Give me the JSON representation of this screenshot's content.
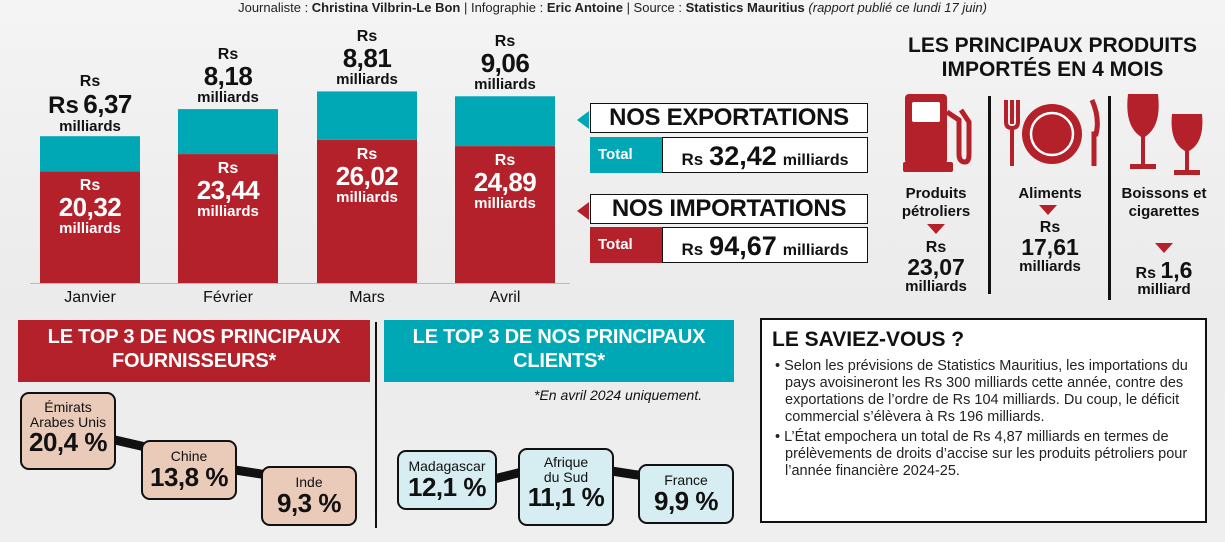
{
  "credits": {
    "journalist_label": "Journaliste : ",
    "journalist": "Christina Vilbrin-Le Bon",
    "infographic_label": " | Infographie : ",
    "infographer": "Eric Antoine",
    "source_label": " | Source : ",
    "source": "Statistics Mauritius",
    "note": " (rapport publié ce lundi 17 juin)"
  },
  "colors": {
    "export": "#00a7b5",
    "import": "#b5212a",
    "supplier_box": "#eacbb9",
    "client_box": "#d6edf1"
  },
  "chart_data": {
    "type": "bar",
    "stacked": true,
    "categories": [
      "Janvier",
      "Février",
      "Mars",
      "Avril"
    ],
    "series": [
      {
        "name": "Importations",
        "values": [
          20.32,
          23.44,
          26.02,
          24.89
        ],
        "labels": [
          "20,32",
          "23,44",
          "26,02",
          "24,89"
        ]
      },
      {
        "name": "Exportations",
        "values": [
          6.37,
          8.18,
          8.81,
          9.06
        ],
        "labels": [
          "6,37",
          "8,18",
          "8,81",
          "9,06"
        ]
      }
    ],
    "currency": "Rs",
    "unit": "milliards",
    "title": "",
    "xlabel": "",
    "ylabel": "",
    "ylim": [
      0,
      36
    ]
  },
  "totals": {
    "exports": {
      "title": "NOS EXPORTATIONS",
      "label": "Total",
      "currency": "Rs",
      "value": "32,42",
      "unit": "milliards"
    },
    "imports": {
      "title": "NOS IMPORTATIONS",
      "label": "Total",
      "currency": "Rs",
      "value": "94,67",
      "unit": "milliards"
    }
  },
  "products": {
    "title": "LES PRINCIPAUX PRODUITS IMPORTÉS EN 4 MOIS",
    "items": [
      {
        "name": "Produits pétroliers",
        "icon": "fuel-pump-icon",
        "currency": "Rs",
        "value": "23,07",
        "unit": "milliards"
      },
      {
        "name": "Aliments",
        "icon": "plate-cutlery-icon",
        "currency": "Rs",
        "value": "17,61",
        "unit": "milliards"
      },
      {
        "name": "Boissons et cigarettes",
        "icon": "wine-glasses-icon",
        "currency": "Rs",
        "value": "1,6",
        "unit": "milliard"
      }
    ]
  },
  "suppliers": {
    "title": "LE TOP 3 DE NOS PRINCIPAUX FOURNISSEURS*",
    "items": [
      {
        "name": "Émirats Arabes Unis",
        "percent": "20,4 %"
      },
      {
        "name": "Chine",
        "percent": "13,8 %"
      },
      {
        "name": "Inde",
        "percent": "9,3 %"
      }
    ]
  },
  "clients": {
    "title": "LE TOP 3 DE NOS PRINCIPAUX CLIENTS*",
    "footnote": "*En avril 2024 uniquement.",
    "items": [
      {
        "name": "Madagascar",
        "percent": "12,1 %"
      },
      {
        "name": "Afrique du Sud",
        "percent": "11,1 %"
      },
      {
        "name": "France",
        "percent": "9,9 %"
      }
    ]
  },
  "saviez": {
    "title": "LE SAVIEZ-VOUS ?",
    "items": [
      "• Selon les prévisions de Statistics Mauritius, les importations du pays avoisineront les Rs 300 milliards cette année, contre des exportations de l’ordre de Rs 104 milliards. Du coup, le déficit commercial s’élèvera à Rs 196 milliards.",
      "• L’État empochera un total de Rs 4,87 milliards en termes de prélèvements de droits d’accise sur les produits pétroliers pour l’année financière 2024-25."
    ]
  }
}
